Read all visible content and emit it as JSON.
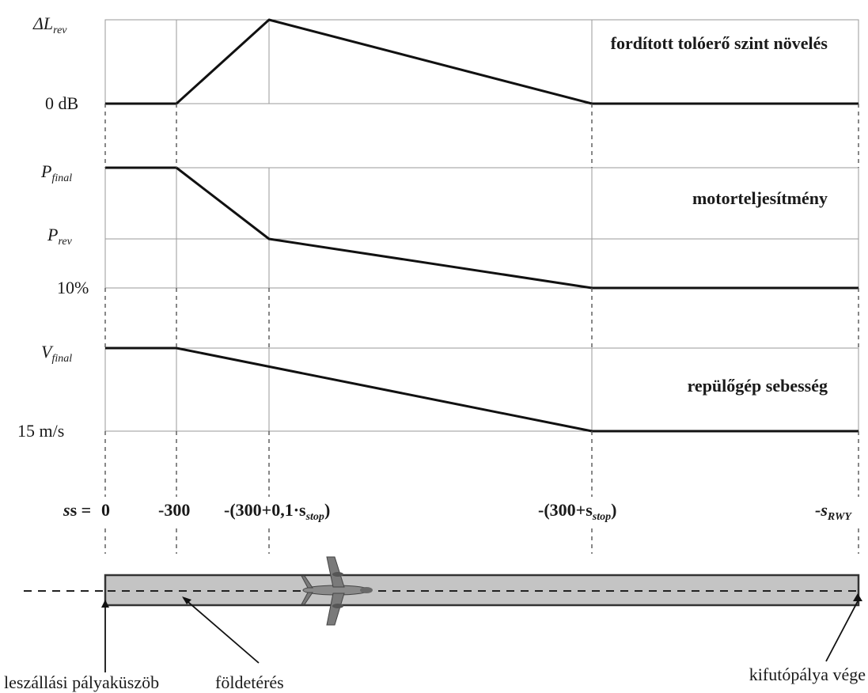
{
  "panels": {
    "thrust": {
      "title": "fordított tolóerő szint növelés",
      "y_top_label": "ΔL",
      "y_top_sub": "rev",
      "y_bottom_label": "0 dB"
    },
    "power": {
      "title": "motorteljesítmény",
      "y_top_label": "P",
      "y_top_sub": "final",
      "y_mid_label": "P",
      "y_mid_sub": "rev",
      "y_bottom_label": "10%"
    },
    "speed": {
      "title": "repülőgép sebesség",
      "y_top_label": "V",
      "y_top_sub": "final",
      "y_bottom_label": "15 m/s"
    }
  },
  "distance_axis": {
    "prefix": "s =",
    "ticks": [
      {
        "main": "0"
      },
      {
        "main": "-300"
      },
      {
        "main": "-(300+0,1·s",
        "sub": "stop",
        "suffix": ")"
      },
      {
        "main": "-(300+s",
        "sub": "stop",
        "suffix": ")"
      },
      {
        "main": "-s",
        "sub": "RWY"
      }
    ]
  },
  "runway_labels": {
    "threshold": "leszállási pályaküszöb",
    "touchdown": "földetérés",
    "runway_end": "kifutópálya vége"
  },
  "colors": {
    "runway_fill": "#c4c4c4",
    "line": "#111111",
    "grid": "#9a9a9a"
  },
  "icons": {
    "aircraft": "airplane-icon"
  }
}
